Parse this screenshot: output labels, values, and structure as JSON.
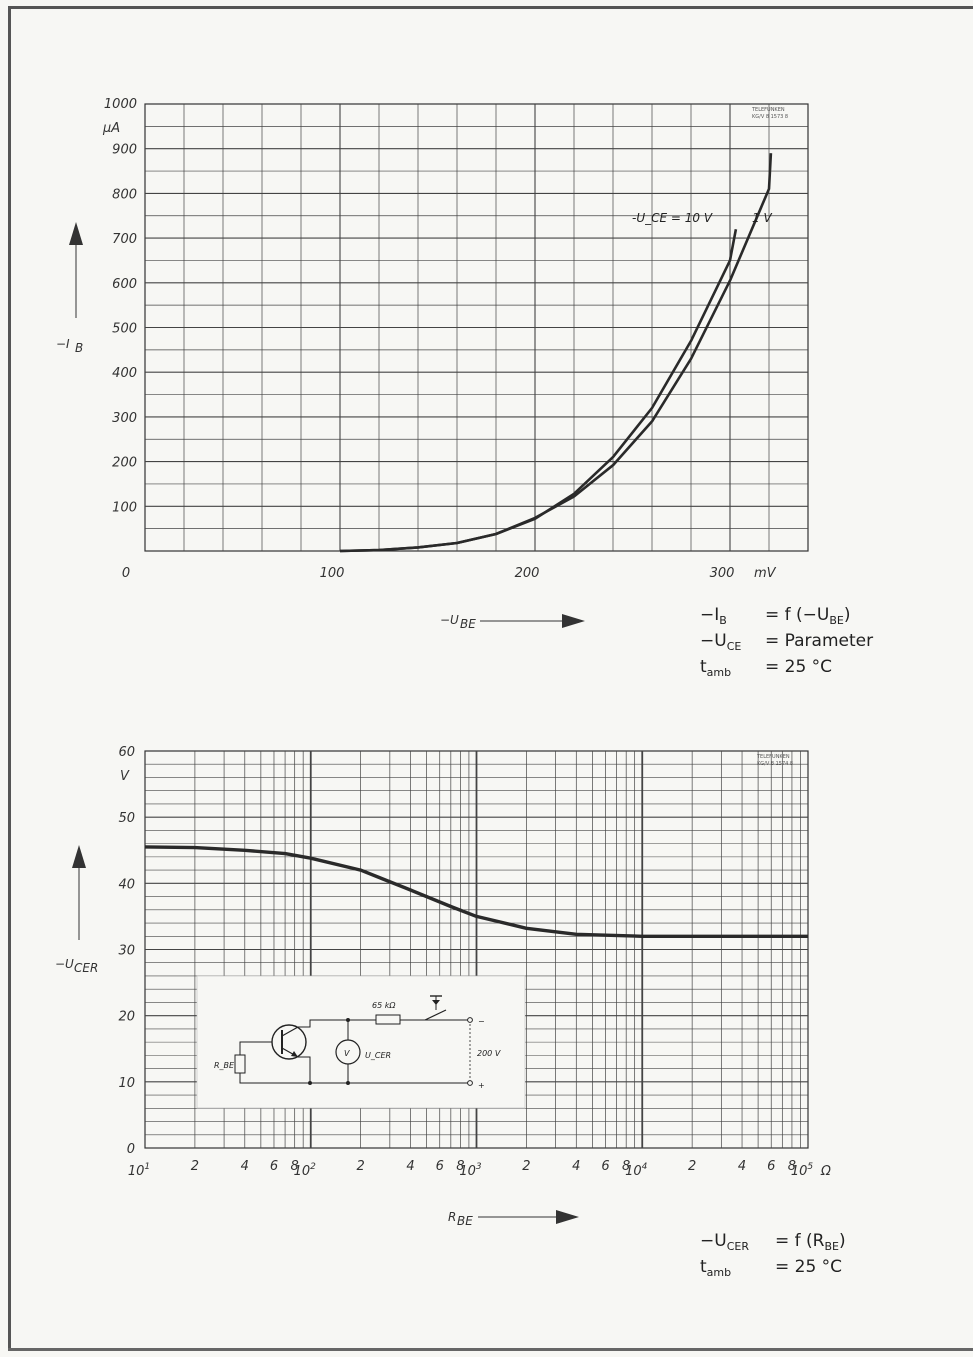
{
  "chart_data": [
    {
      "type": "line",
      "stamp": [
        "TELEFUNKEN",
        "KG/V 8 1573 8"
      ],
      "xlabel": "-U_BE",
      "ylabel": "-I_B",
      "y_unit": "µA",
      "x_unit": "mV",
      "xlim": [
        0,
        340
      ],
      "ylim": [
        0,
        1000
      ],
      "x_ticks": [
        {
          "value": 0,
          "label": "0"
        },
        {
          "value": 100,
          "label": "100"
        },
        {
          "value": 200,
          "label": "200"
        },
        {
          "value": 300,
          "label": "300"
        }
      ],
      "y_ticks": [
        {
          "value": 100,
          "label": "100"
        },
        {
          "value": 200,
          "label": "200"
        },
        {
          "value": 300,
          "label": "300"
        },
        {
          "value": 400,
          "label": "400"
        },
        {
          "value": 500,
          "label": "500"
        },
        {
          "value": 600,
          "label": "600"
        },
        {
          "value": 700,
          "label": "700"
        },
        {
          "value": 800,
          "label": "800"
        },
        {
          "value": 900,
          "label": "900"
        },
        {
          "value": 1000,
          "label": "1000"
        }
      ],
      "grid": true,
      "series": [
        {
          "name": "-U_CE = 10 V",
          "points": [
            [
              100,
              0
            ],
            [
              120,
              2
            ],
            [
              140,
              8
            ],
            [
              160,
              18
            ],
            [
              180,
              38
            ],
            [
              200,
              72
            ],
            [
              220,
              128
            ],
            [
              240,
              210
            ],
            [
              260,
              320
            ],
            [
              280,
              470
            ],
            [
              300,
              650
            ],
            [
              303,
              720
            ]
          ]
        },
        {
          "name": "1 V",
          "points": [
            [
              100,
              0
            ],
            [
              120,
              2
            ],
            [
              140,
              8
            ],
            [
              160,
              18
            ],
            [
              180,
              38
            ],
            [
              200,
              74
            ],
            [
              220,
              122
            ],
            [
              240,
              192
            ],
            [
              260,
              290
            ],
            [
              280,
              430
            ],
            [
              300,
              605
            ],
            [
              320,
              810
            ],
            [
              321,
              890
            ]
          ]
        }
      ],
      "formula": [
        {
          "lhs": "−I",
          "sub": "B",
          "rhs": "=  f (−U",
          "rhs_sub": "BE",
          "tail": ")"
        },
        {
          "lhs": "−U",
          "sub": "CE",
          "rhs": "=  Parameter",
          "rhs_sub": "",
          "tail": ""
        },
        {
          "lhs": "t",
          "sub": "amb",
          "rhs": "=  25 °C",
          "rhs_sub": "",
          "tail": ""
        }
      ]
    },
    {
      "type": "line",
      "x_scale": "log",
      "stamp": [
        "TELEFUNKEN",
        "KG/V 8 1574 8"
      ],
      "xlabel": "R_BE",
      "ylabel": "-U_CER",
      "y_unit": "V",
      "x_unit": "Ω",
      "xlim": [
        10,
        100000
      ],
      "ylim": [
        0,
        60
      ],
      "y_ticks": [
        {
          "value": 0,
          "label": "0"
        },
        {
          "value": 10,
          "label": "10"
        },
        {
          "value": 20,
          "label": "20"
        },
        {
          "value": 30,
          "label": "30"
        },
        {
          "value": 40,
          "label": "40"
        },
        {
          "value": 50,
          "label": "50"
        },
        {
          "value": 60,
          "label": "60"
        }
      ],
      "x_minor_labels": [
        "2",
        "4",
        "6",
        "8"
      ],
      "grid": true,
      "series": [
        {
          "name": "",
          "points": [
            [
              10,
              45.5
            ],
            [
              20,
              45.4
            ],
            [
              40,
              45
            ],
            [
              70,
              44.5
            ],
            [
              100,
              43.8
            ],
            [
              200,
              42
            ],
            [
              400,
              39
            ],
            [
              700,
              36.5
            ],
            [
              1000,
              35
            ],
            [
              2000,
              33.2
            ],
            [
              4000,
              32.3
            ],
            [
              10000,
              32
            ],
            [
              100000,
              32
            ]
          ]
        }
      ],
      "inset": {
        "resistor_label": "65 kΩ",
        "voltage_label": "200 V",
        "meter_label": "V",
        "meter_value_label": "U_CER",
        "rbe_label": "R_BE",
        "minus": "−",
        "plus": "+"
      },
      "formula": [
        {
          "lhs": "−U",
          "sub": "CER",
          "rhs": "=  f (R",
          "rhs_sub": "BE",
          "tail": ")"
        },
        {
          "lhs": "t",
          "sub": "amb",
          "rhs": "=  25 °C",
          "rhs_sub": "",
          "tail": ""
        }
      ]
    }
  ]
}
